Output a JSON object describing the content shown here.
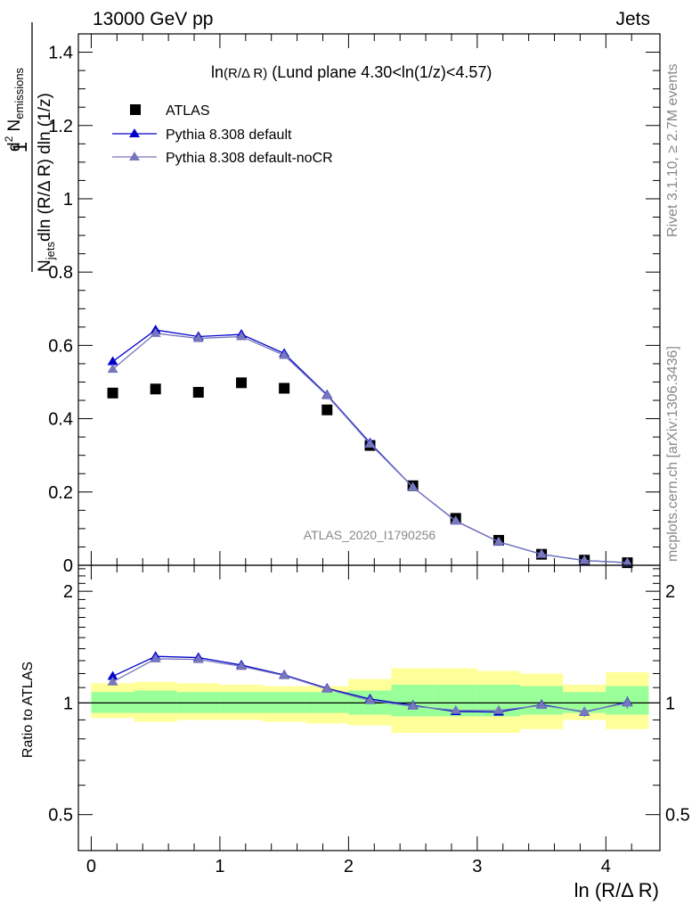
{
  "header": {
    "left": "13000 GeV pp",
    "right": "Jets"
  },
  "side_labels": {
    "rivet": "Rivet 3.1.10, ≥ 2.7M events",
    "mcplots": "mcplots.cern.ch [arXiv:1306.3436]"
  },
  "chart_data": [
    {
      "type": "scatter",
      "title": "ln(R/Δ R) (Lund plane 4.30<ln(1/z)<4.57)",
      "title_parts": {
        "main": "ln",
        "arg": "(R/Δ R)",
        "rest": " (Lund plane 4.30<ln(1/z)<4.57)"
      },
      "ylabel_parts": {
        "one": "1",
        "N": "N",
        "jets": "jets",
        "dln": "dln (R/Δ R) dln (1/z)",
        "d2": "d",
        "sup2": "2",
        "Nem": " N",
        "emissions": "emissions"
      },
      "watermark": "ATLAS_2020_I1790256",
      "xlim": [
        -0.1,
        4.42
      ],
      "ylim": [
        0,
        1.45
      ],
      "yticks": [
        0,
        0.2,
        0.4,
        0.6,
        0.8,
        1,
        1.2,
        1.4
      ],
      "ytick_labels": [
        "0",
        "0.2",
        "0.4",
        "0.6",
        "0.8",
        "1",
        "1.2",
        "1.4"
      ],
      "legend": {
        "position": "top-left",
        "entries": [
          "ATLAS",
          "Pythia 8.308 default",
          "Pythia 8.308 default-noCR"
        ]
      },
      "x": [
        0.167,
        0.5,
        0.833,
        1.167,
        1.5,
        1.833,
        2.167,
        2.5,
        2.833,
        3.167,
        3.5,
        3.833,
        4.167
      ],
      "series": [
        {
          "name": "ATLAS",
          "marker": "square",
          "color": "#000000",
          "values": [
            0.47,
            0.481,
            0.472,
            0.498,
            0.483,
            0.424,
            0.327,
            0.217,
            0.128,
            0.068,
            0.03,
            0.014,
            0.007
          ]
        },
        {
          "name": "Pythia 8.308 default",
          "marker": "triangle",
          "color": "#0000cc",
          "values": [
            0.556,
            0.642,
            0.624,
            0.63,
            0.578,
            0.465,
            0.334,
            0.213,
            0.121,
            0.064,
            0.03,
            0.013,
            0.007
          ]
        },
        {
          "name": "Pythia 8.308 default-noCR",
          "marker": "triangle",
          "color": "#7777bb",
          "values": [
            0.535,
            0.633,
            0.619,
            0.624,
            0.573,
            0.463,
            0.331,
            0.213,
            0.121,
            0.064,
            0.03,
            0.013,
            0.007
          ]
        }
      ]
    },
    {
      "type": "scatter",
      "ylabel": "Ratio to ATLAS",
      "xlabel": "ln (R/Δ R)",
      "scale": "log",
      "xlim": [
        -0.1,
        4.42
      ],
      "ylim": [
        0.4,
        2.35
      ],
      "xticks": [
        0,
        1,
        2,
        3,
        4
      ],
      "xtick_labels": [
        "0",
        "1",
        "2",
        "3",
        "4"
      ],
      "yticks": [
        0.5,
        1,
        2
      ],
      "ytick_labels": [
        "0.5",
        "1",
        "2"
      ],
      "bins": [
        [
          0,
          0.333
        ],
        [
          0.333,
          0.667
        ],
        [
          0.667,
          1
        ],
        [
          1,
          1.333
        ],
        [
          1.333,
          1.667
        ],
        [
          1.667,
          2
        ],
        [
          2,
          2.333
        ],
        [
          2.333,
          2.667
        ],
        [
          2.667,
          3
        ],
        [
          3,
          3.333
        ],
        [
          3.333,
          3.667
        ],
        [
          3.667,
          4
        ],
        [
          4,
          4.333
        ]
      ],
      "band_yellow": [
        [
          0.91,
          1.13
        ],
        [
          0.89,
          1.14
        ],
        [
          0.9,
          1.13
        ],
        [
          0.9,
          1.12
        ],
        [
          0.89,
          1.11
        ],
        [
          0.88,
          1.11
        ],
        [
          0.87,
          1.16
        ],
        [
          0.83,
          1.24
        ],
        [
          0.83,
          1.24
        ],
        [
          0.83,
          1.22
        ],
        [
          0.85,
          1.2
        ],
        [
          0.9,
          1.12
        ],
        [
          0.85,
          1.21
        ]
      ],
      "band_green": [
        [
          0.94,
          1.07
        ],
        [
          0.94,
          1.08
        ],
        [
          0.94,
          1.07
        ],
        [
          0.94,
          1.07
        ],
        [
          0.94,
          1.07
        ],
        [
          0.94,
          1.07
        ],
        [
          0.93,
          1.08
        ],
        [
          0.92,
          1.12
        ],
        [
          0.92,
          1.12
        ],
        [
          0.92,
          1.12
        ],
        [
          0.93,
          1.11
        ],
        [
          0.94,
          1.07
        ],
        [
          0.93,
          1.11
        ]
      ],
      "x": [
        0.167,
        0.5,
        0.833,
        1.167,
        1.5,
        1.833,
        2.167,
        2.5,
        2.833,
        3.167,
        3.5,
        3.833,
        4.167
      ],
      "series": [
        {
          "name": "Pythia 8.308 default",
          "color": "#0000cc",
          "values": [
            1.18,
            1.335,
            1.325,
            1.265,
            1.19,
            1.095,
            1.025,
            0.985,
            0.948,
            0.945,
            0.99,
            0.945,
            1.005
          ],
          "errors": [
            0.005,
            0.005,
            0.005,
            0.005,
            0.005,
            0.005,
            0.005,
            0.005,
            0.008,
            0.01,
            0.015,
            0.025,
            0.035
          ]
        },
        {
          "name": "Pythia 8.308 default-noCR",
          "color": "#7777bb",
          "values": [
            1.14,
            1.315,
            1.31,
            1.255,
            1.185,
            1.09,
            1.015,
            0.98,
            0.955,
            0.955,
            0.985,
            0.948,
            1.0
          ],
          "errors": [
            0.005,
            0.005,
            0.005,
            0.005,
            0.005,
            0.005,
            0.005,
            0.005,
            0.008,
            0.01,
            0.015,
            0.025,
            0.035
          ]
        }
      ]
    }
  ],
  "colors": {
    "band_yellow": "#ffff99",
    "band_green": "#99ff99"
  }
}
